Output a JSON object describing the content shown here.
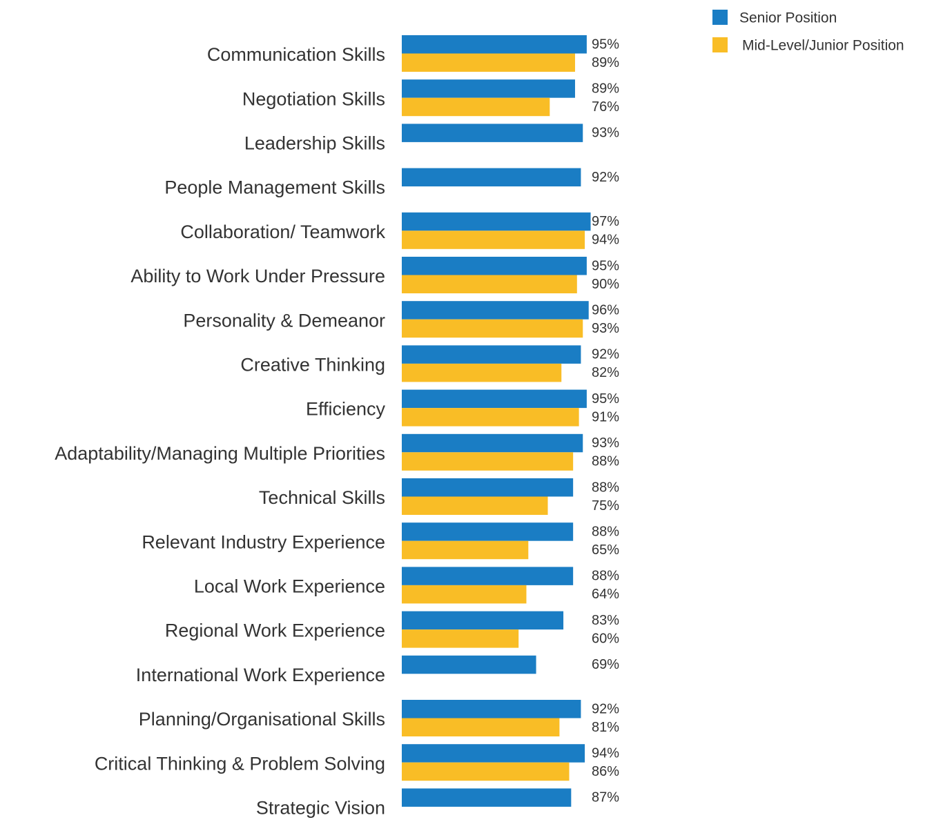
{
  "chart_data": {
    "type": "bar",
    "orientation": "horizontal",
    "categories": [
      "Communication Skills",
      "Negotiation Skills",
      "Leadership Skills",
      "People Management Skills",
      "Collaboration/ Teamwork",
      "Ability to Work Under Pressure",
      "Personality & Demeanor",
      "Creative Thinking",
      "Efficiency",
      "Adaptability/Managing Multiple Priorities",
      "Technical Skills",
      "Relevant Industry Experience",
      "Local Work Experience",
      "Regional Work Experience",
      "International Work Experience",
      "Planning/Organisational Skills",
      "Critical Thinking & Problem Solving",
      "Strategic Vision"
    ],
    "series": [
      {
        "name": "Senior Position",
        "color": "#1a7dc4",
        "values": [
          95,
          89,
          93,
          92,
          97,
          95,
          96,
          92,
          95,
          93,
          88,
          88,
          88,
          83,
          69,
          92,
          94,
          87
        ],
        "value_labels": [
          "95%",
          "89%",
          "93%",
          "92%",
          "97%",
          "95%",
          "96%",
          "92%",
          "95%",
          "93%",
          "88%",
          "88%",
          "88%",
          "83%",
          "69%",
          "92%",
          "94%",
          "87%"
        ]
      },
      {
        "name": "Mid-Level/Junior Position",
        "color": "#f9bd26",
        "values": [
          89,
          76,
          null,
          null,
          94,
          90,
          93,
          82,
          91,
          88,
          75,
          65,
          64,
          60,
          null,
          81,
          86,
          null
        ],
        "value_labels": [
          "89%",
          "76%",
          null,
          null,
          "94%",
          "90%",
          "93%",
          "82%",
          "91%",
          "88%",
          "75%",
          "65%",
          "64%",
          "60%",
          null,
          "81%",
          "86%",
          null
        ]
      }
    ],
    "legend": "top-right"
  }
}
